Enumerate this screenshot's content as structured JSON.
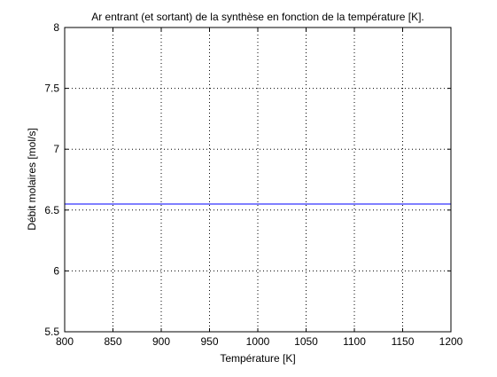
{
  "chart_data": {
    "type": "line",
    "title": "Ar entrant (et sortant) de la synthèse en fonction de la température [K].",
    "xlabel": "Température [K]",
    "ylabel": "Débit molaires [mol/s]",
    "xlim": [
      800,
      1200
    ],
    "ylim": [
      5.5,
      8
    ],
    "x_ticks": [
      "800",
      "850",
      "900",
      "950",
      "1000",
      "1050",
      "1100",
      "1150",
      "1200"
    ],
    "y_ticks": [
      "5.5",
      "6",
      "6.5",
      "7",
      "7.5",
      "8"
    ],
    "grid": true,
    "grid_style": "dotted",
    "legend": "none",
    "series": [
      {
        "color": "#0000ff",
        "x": [
          800,
          1200
        ],
        "y": [
          6.55,
          6.55
        ]
      }
    ]
  }
}
